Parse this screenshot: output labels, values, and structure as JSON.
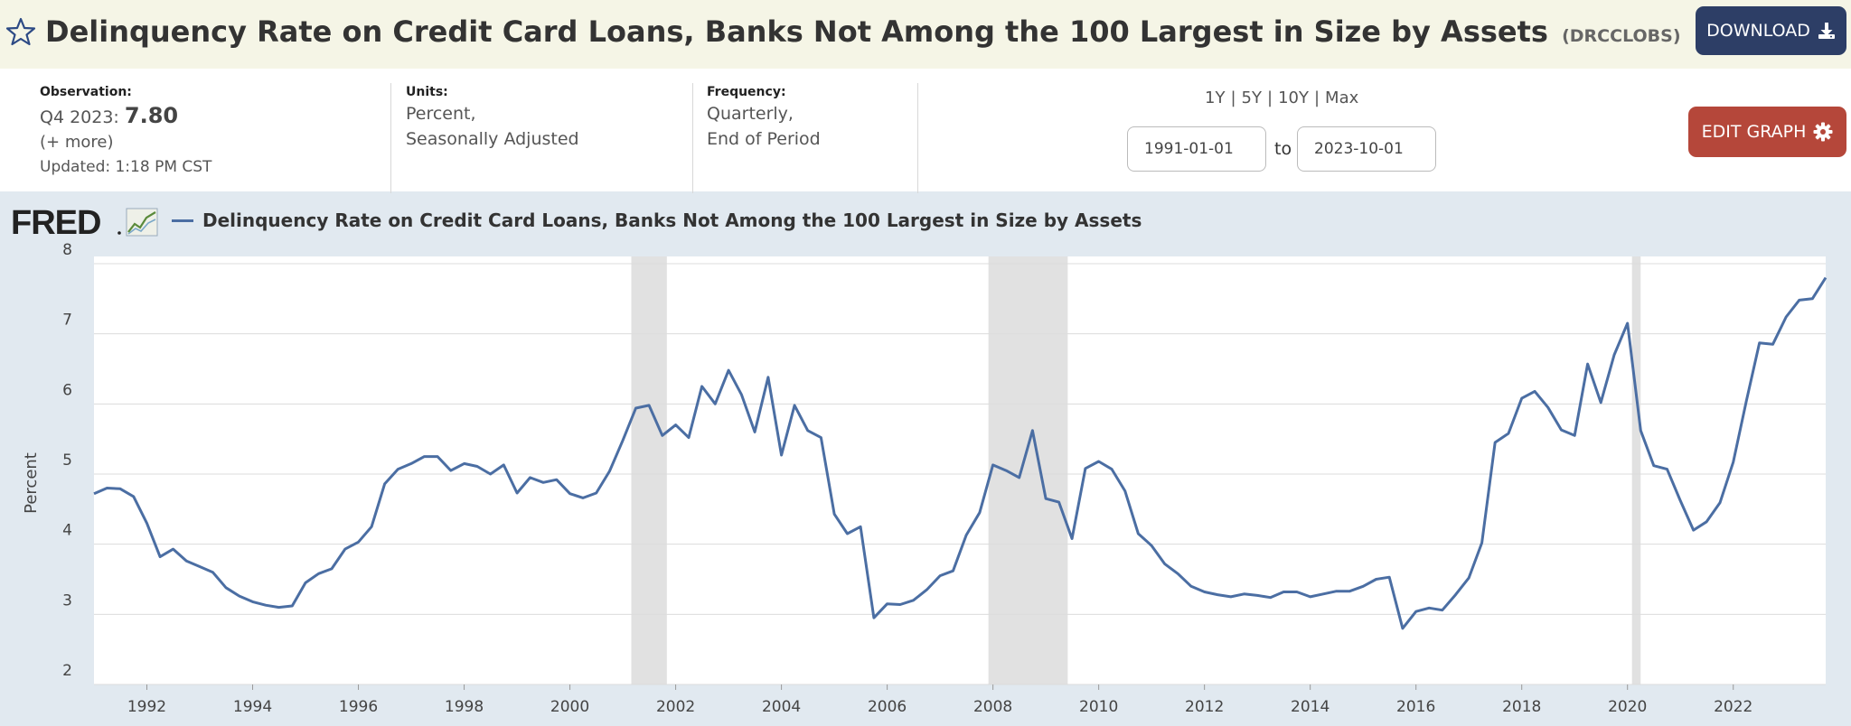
{
  "header": {
    "title": "Delinquency Rate on Credit Card Loans, Banks Not Among the 100 Largest in Size by Assets",
    "series_id": "(DRCCLOBS)",
    "download_label": "DOWNLOAD"
  },
  "info": {
    "observation_label": "Observation:",
    "observation_period": "Q4 2023:",
    "observation_value": "7.80",
    "more": "(+ more)",
    "updated": "Updated: 1:18 PM CST",
    "units_label": "Units:",
    "units_line1": "Percent,",
    "units_line2": "Seasonally Adjusted",
    "frequency_label": "Frequency:",
    "frequency_line1": "Quarterly,",
    "frequency_line2": "End of Period",
    "ranges": [
      "1Y",
      "5Y",
      "10Y",
      "Max"
    ],
    "start_date": "1991-01-01",
    "to_label": "to",
    "end_date": "2023-10-01",
    "edit_label": "EDIT GRAPH"
  },
  "colors": {
    "line": "#4b6ea3",
    "recession": "#e1e1e1",
    "download_button": "#2d3e66",
    "edit_button": "#b5473a"
  },
  "icons": [
    "star-icon",
    "download-icon",
    "gear-icon",
    "fred-logo"
  ],
  "chart_data": {
    "type": "line",
    "title": "",
    "legend": "Delinquency Rate on Credit Card Loans, Banks Not Among the 100 Largest in Size by Assets",
    "ylabel": "Percent",
    "xlabel": "",
    "ylim": [
      2,
      8
    ],
    "yticks": [
      2,
      3,
      4,
      5,
      6,
      7,
      8
    ],
    "xticks": [
      1992,
      1994,
      1996,
      1998,
      2000,
      2002,
      2004,
      2006,
      2008,
      2010,
      2012,
      2014,
      2016,
      2018,
      2020,
      2022
    ],
    "xlim": [
      "1991-01-01",
      "2023-10-01"
    ],
    "grid": true,
    "recessions": [
      [
        "2001-03-01",
        "2001-11-01"
      ],
      [
        "2007-12-01",
        "2009-06-01"
      ],
      [
        "2020-02-01",
        "2020-04-01"
      ]
    ],
    "series": [
      {
        "name": "Delinquency Rate on Credit Card Loans, Banks Not Among the 100 Largest in Size by Assets",
        "x": [
          "1991-01-01",
          "1991-04-01",
          "1991-07-01",
          "1991-10-01",
          "1992-01-01",
          "1992-04-01",
          "1992-07-01",
          "1992-10-01",
          "1993-01-01",
          "1993-04-01",
          "1993-07-01",
          "1993-10-01",
          "1994-01-01",
          "1994-04-01",
          "1994-07-01",
          "1994-10-01",
          "1995-01-01",
          "1995-04-01",
          "1995-07-01",
          "1995-10-01",
          "1996-01-01",
          "1996-04-01",
          "1996-07-01",
          "1996-10-01",
          "1997-01-01",
          "1997-04-01",
          "1997-07-01",
          "1997-10-01",
          "1998-01-01",
          "1998-04-01",
          "1998-07-01",
          "1998-10-01",
          "1999-01-01",
          "1999-04-01",
          "1999-07-01",
          "1999-10-01",
          "2000-01-01",
          "2000-04-01",
          "2000-07-01",
          "2000-10-01",
          "2001-01-01",
          "2001-04-01",
          "2001-07-01",
          "2001-10-01",
          "2002-01-01",
          "2002-04-01",
          "2002-07-01",
          "2002-10-01",
          "2003-01-01",
          "2003-04-01",
          "2003-07-01",
          "2003-10-01",
          "2004-01-01",
          "2004-04-01",
          "2004-07-01",
          "2004-10-01",
          "2005-01-01",
          "2005-04-01",
          "2005-07-01",
          "2005-10-01",
          "2006-01-01",
          "2006-04-01",
          "2006-07-01",
          "2006-10-01",
          "2007-01-01",
          "2007-04-01",
          "2007-07-01",
          "2007-10-01",
          "2008-01-01",
          "2008-04-01",
          "2008-07-01",
          "2008-10-01",
          "2009-01-01",
          "2009-04-01",
          "2009-07-01",
          "2009-10-01",
          "2010-01-01",
          "2010-04-01",
          "2010-07-01",
          "2010-10-01",
          "2011-01-01",
          "2011-04-01",
          "2011-07-01",
          "2011-10-01",
          "2012-01-01",
          "2012-04-01",
          "2012-07-01",
          "2012-10-01",
          "2013-01-01",
          "2013-04-01",
          "2013-07-01",
          "2013-10-01",
          "2014-01-01",
          "2014-04-01",
          "2014-07-01",
          "2014-10-01",
          "2015-01-01",
          "2015-04-01",
          "2015-07-01",
          "2015-10-01",
          "2016-01-01",
          "2016-04-01",
          "2016-07-01",
          "2016-10-01",
          "2017-01-01",
          "2017-04-01",
          "2017-07-01",
          "2017-10-01",
          "2018-01-01",
          "2018-04-01",
          "2018-07-01",
          "2018-10-01",
          "2019-01-01",
          "2019-04-01",
          "2019-07-01",
          "2019-10-01",
          "2020-01-01",
          "2020-04-01",
          "2020-07-01",
          "2020-10-01",
          "2021-01-01",
          "2021-04-01",
          "2021-07-01",
          "2021-10-01",
          "2022-01-01",
          "2022-04-01",
          "2022-07-01",
          "2022-10-01",
          "2023-01-01",
          "2023-04-01",
          "2023-07-01",
          "2023-10-01"
        ],
        "values": [
          4.72,
          4.8,
          4.79,
          4.68,
          4.3,
          3.82,
          3.93,
          3.76,
          3.68,
          3.6,
          3.38,
          3.26,
          3.18,
          3.13,
          3.1,
          3.12,
          3.45,
          3.58,
          3.65,
          3.93,
          4.03,
          4.25,
          4.86,
          5.07,
          5.15,
          5.25,
          5.25,
          5.05,
          5.15,
          5.11,
          5.0,
          5.13,
          4.73,
          4.95,
          4.88,
          4.92,
          4.72,
          4.66,
          4.73,
          5.04,
          5.48,
          5.94,
          5.98,
          5.55,
          5.7,
          5.52,
          6.25,
          6.0,
          6.48,
          6.13,
          5.6,
          6.38,
          5.27,
          5.98,
          5.62,
          5.52,
          4.43,
          4.15,
          4.25,
          2.95,
          3.15,
          3.14,
          3.2,
          3.35,
          3.55,
          3.62,
          4.13,
          4.45,
          5.13,
          5.05,
          4.95,
          5.62,
          4.65,
          4.6,
          4.08,
          5.08,
          5.18,
          5.07,
          4.76,
          4.15,
          3.98,
          3.72,
          3.58,
          3.4,
          3.32,
          3.28,
          3.25,
          3.29,
          3.27,
          3.24,
          3.32,
          3.32,
          3.25,
          3.29,
          3.33,
          3.33,
          3.4,
          3.5,
          3.53,
          2.8,
          3.04,
          3.09,
          3.06,
          3.28,
          3.52,
          4.02,
          5.45,
          5.58,
          6.08,
          6.18,
          5.95,
          5.63,
          5.55,
          6.57,
          6.02,
          6.7,
          7.15,
          5.62,
          5.12,
          5.07,
          4.62,
          4.2,
          4.32,
          4.59,
          5.17,
          6.04,
          6.87,
          6.85,
          7.24,
          7.48,
          7.5,
          7.8
        ]
      }
    ]
  }
}
